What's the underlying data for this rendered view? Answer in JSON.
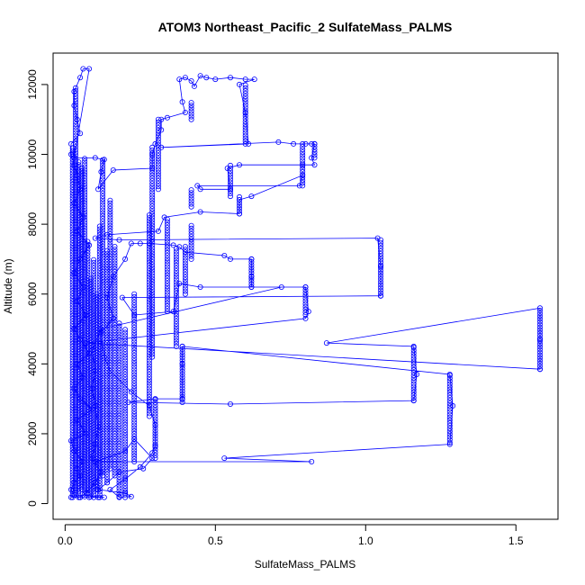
{
  "chart_data": {
    "type": "scatter",
    "title": "ATOM3 Northeast_Pacific_2 SulfateMass_PALMS",
    "xlabel": "SulfateMass_PALMS",
    "ylabel": "Altitude (m)",
    "xlim": [
      -0.04,
      1.64
    ],
    "ylim": [
      -450,
      12900
    ],
    "xticks": [
      0.0,
      0.5,
      1.0,
      1.5
    ],
    "xtick_labels": [
      "0.0",
      "0.5",
      "1.0",
      "1.5"
    ],
    "yticks": [
      0,
      2000,
      4000,
      6000,
      8000,
      10000,
      12000
    ],
    "ytick_labels": [
      "0",
      "2000",
      "4000",
      "6000",
      "8000",
      "10000",
      "12000"
    ],
    "grid": false,
    "marker": "open-circle",
    "color": "#0000ff",
    "line_style": "connected",
    "series": [
      {
        "points": [
          [
            0.02,
            180
          ],
          [
            0.05,
            180
          ],
          [
            0.08,
            180
          ],
          [
            0.11,
            180
          ],
          [
            0.13,
            180
          ],
          [
            0.03,
            250
          ],
          [
            0.02,
            400
          ],
          [
            0.03,
            600
          ],
          [
            0.05,
            800
          ],
          [
            0.04,
            1000
          ],
          [
            0.06,
            1200
          ],
          [
            0.03,
            1500
          ],
          [
            0.02,
            1800
          ],
          [
            0.07,
            2000
          ],
          [
            0.04,
            2400
          ],
          [
            0.09,
            2700
          ],
          [
            0.05,
            3000
          ],
          [
            0.03,
            3300
          ],
          [
            0.06,
            3600
          ],
          [
            0.04,
            4000
          ],
          [
            0.08,
            4300
          ],
          [
            0.05,
            4700
          ],
          [
            0.03,
            5000
          ],
          [
            0.07,
            5400
          ],
          [
            0.04,
            5800
          ],
          [
            0.06,
            6200
          ],
          [
            0.03,
            6600
          ],
          [
            0.05,
            7000
          ],
          [
            0.08,
            7400
          ],
          [
            0.04,
            7800
          ],
          [
            0.06,
            8200
          ],
          [
            0.03,
            8600
          ],
          [
            0.05,
            9000
          ],
          [
            0.04,
            9400
          ],
          [
            0.03,
            9700
          ],
          [
            0.02,
            10000
          ],
          [
            0.02,
            10300
          ],
          [
            0.05,
            10600
          ],
          [
            0.04,
            11000
          ],
          [
            0.03,
            11400
          ],
          [
            0.03,
            11800
          ],
          [
            0.05,
            12200
          ],
          [
            0.06,
            12450
          ],
          [
            0.08,
            12450
          ],
          [
            0.03,
            9900
          ],
          [
            0.1,
            9900
          ],
          [
            0.13,
            9850
          ],
          [
            0.12,
            9500
          ],
          [
            0.11,
            9000
          ],
          [
            0.16,
            9550
          ],
          [
            0.29,
            9600
          ],
          [
            0.29,
            10000
          ],
          [
            0.3,
            10300
          ],
          [
            0.32,
            10700
          ],
          [
            0.32,
            11000
          ],
          [
            0.34,
            11050
          ],
          [
            0.4,
            11200
          ],
          [
            0.39,
            11500
          ],
          [
            0.38,
            12150
          ],
          [
            0.4,
            12200
          ],
          [
            0.42,
            12100
          ],
          [
            0.43,
            11950
          ],
          [
            0.45,
            12250
          ],
          [
            0.47,
            12200
          ],
          [
            0.5,
            12150
          ],
          [
            0.55,
            12200
          ],
          [
            0.6,
            12150
          ],
          [
            0.63,
            12150
          ],
          [
            0.58,
            12000
          ],
          [
            0.6,
            11200
          ],
          [
            0.61,
            10300
          ],
          [
            0.32,
            10200
          ],
          [
            0.71,
            10350
          ],
          [
            0.76,
            10300
          ],
          [
            0.8,
            10300
          ],
          [
            0.82,
            10300
          ],
          [
            0.83,
            10300
          ],
          [
            0.82,
            9900
          ],
          [
            0.83,
            9700
          ],
          [
            0.79,
            9700
          ],
          [
            0.58,
            9700
          ],
          [
            0.54,
            9600
          ],
          [
            0.55,
            9000
          ],
          [
            0.45,
            9000
          ],
          [
            0.44,
            9100
          ],
          [
            0.78,
            9100
          ],
          [
            0.79,
            9400
          ],
          [
            0.62,
            8800
          ],
          [
            0.58,
            8700
          ],
          [
            0.58,
            8300
          ],
          [
            0.45,
            8350
          ],
          [
            0.33,
            8200
          ],
          [
            0.31,
            7800
          ],
          [
            0.14,
            7700
          ],
          [
            0.1,
            7600
          ],
          [
            0.18,
            7550
          ],
          [
            1.04,
            7600
          ],
          [
            1.05,
            6800
          ],
          [
            1.05,
            5950
          ],
          [
            0.19,
            5900
          ],
          [
            0.23,
            5400
          ],
          [
            0.36,
            5500
          ],
          [
            0.38,
            6300
          ],
          [
            0.45,
            6200
          ],
          [
            0.8,
            6200
          ],
          [
            0.81,
            5500
          ],
          [
            0.8,
            5300
          ],
          [
            0.07,
            4600
          ],
          [
            1.58,
            3850
          ],
          [
            1.58,
            4700
          ],
          [
            1.58,
            5600
          ],
          [
            0.87,
            4600
          ],
          [
            1.16,
            4500
          ],
          [
            1.17,
            3700
          ],
          [
            1.16,
            2950
          ],
          [
            0.55,
            2850
          ],
          [
            0.21,
            2900
          ],
          [
            0.3,
            3000
          ],
          [
            0.39,
            3000
          ],
          [
            0.39,
            4000
          ],
          [
            0.39,
            4500
          ],
          [
            1.28,
            3700
          ],
          [
            1.29,
            2800
          ],
          [
            1.28,
            1700
          ],
          [
            0.53,
            1300
          ],
          [
            0.82,
            1200
          ],
          [
            0.1,
            1200
          ],
          [
            0.2,
            1500
          ],
          [
            0.23,
            1850
          ],
          [
            0.29,
            1300
          ],
          [
            0.26,
            1000
          ],
          [
            0.18,
            900
          ],
          [
            0.14,
            600
          ],
          [
            0.11,
            400
          ],
          [
            0.2,
            300
          ],
          [
            0.22,
            200
          ],
          [
            0.18,
            180
          ],
          [
            0.15,
            400
          ],
          [
            0.2,
            700
          ],
          [
            0.25,
            1050
          ],
          [
            0.29,
            1450
          ],
          [
            0.3,
            1650
          ],
          [
            0.3,
            2250
          ],
          [
            0.28,
            2800
          ],
          [
            0.22,
            3200
          ],
          [
            0.15,
            3800
          ],
          [
            0.13,
            4200
          ],
          [
            0.12,
            4900
          ],
          [
            0.16,
            5300
          ],
          [
            0.14,
            5900
          ],
          [
            0.16,
            6500
          ],
          [
            0.2,
            7000
          ],
          [
            0.22,
            7450
          ],
          [
            0.25,
            7450
          ],
          [
            0.28,
            7450
          ],
          [
            0.36,
            7400
          ],
          [
            0.38,
            7350
          ],
          [
            0.4,
            7200
          ],
          [
            0.53,
            7100
          ],
          [
            0.55,
            7000
          ],
          [
            0.62,
            7000
          ],
          [
            0.62,
            6500
          ],
          [
            0.62,
            6200
          ],
          [
            0.72,
            6200
          ],
          [
            0.12,
            5000
          ],
          [
            0.09,
            4400
          ],
          [
            0.1,
            3800
          ],
          [
            0.09,
            3300
          ],
          [
            0.1,
            2800
          ],
          [
            0.11,
            2200
          ],
          [
            0.1,
            1700
          ],
          [
            0.09,
            1300
          ],
          [
            0.12,
            900
          ],
          [
            0.1,
            600
          ],
          [
            0.07,
            300
          ],
          [
            0.05,
            180
          ]
        ]
      }
    ],
    "columns": [
      {
        "x": 0.025,
        "y0": 180,
        "y1": 10200
      },
      {
        "x": 0.035,
        "y0": 300,
        "y1": 11900
      },
      {
        "x": 0.045,
        "y0": 180,
        "y1": 9800
      },
      {
        "x": 0.055,
        "y0": 400,
        "y1": 9600
      },
      {
        "x": 0.065,
        "y0": 200,
        "y1": 9900
      },
      {
        "x": 0.075,
        "y0": 300,
        "y1": 7500
      },
      {
        "x": 0.085,
        "y0": 200,
        "y1": 6500
      },
      {
        "x": 0.095,
        "y0": 180,
        "y1": 7000
      },
      {
        "x": 0.105,
        "y0": 400,
        "y1": 6000
      },
      {
        "x": 0.115,
        "y0": 180,
        "y1": 8000
      },
      {
        "x": 0.125,
        "y0": 800,
        "y1": 9900
      },
      {
        "x": 0.14,
        "y0": 600,
        "y1": 7300
      },
      {
        "x": 0.15,
        "y0": 1000,
        "y1": 8700
      },
      {
        "x": 0.165,
        "y0": 800,
        "y1": 7400
      },
      {
        "x": 0.18,
        "y0": 200,
        "y1": 5200
      },
      {
        "x": 0.2,
        "y0": 180,
        "y1": 5000
      },
      {
        "x": 0.23,
        "y0": 1200,
        "y1": 6000
      },
      {
        "x": 0.28,
        "y0": 2500,
        "y1": 8300
      },
      {
        "x": 0.29,
        "y0": 4200,
        "y1": 10200
      },
      {
        "x": 0.3,
        "y0": 1300,
        "y1": 3000
      },
      {
        "x": 0.31,
        "y0": 9000,
        "y1": 11000
      },
      {
        "x": 0.34,
        "y0": 5500,
        "y1": 8200
      },
      {
        "x": 0.37,
        "y0": 4500,
        "y1": 7300
      },
      {
        "x": 0.39,
        "y0": 2900,
        "y1": 4500
      },
      {
        "x": 0.4,
        "y0": 6000,
        "y1": 7400
      },
      {
        "x": 0.42,
        "y0": 7000,
        "y1": 8000
      },
      {
        "x": 0.42,
        "y0": 11000,
        "y1": 11500
      },
      {
        "x": 0.42,
        "y0": 8500,
        "y1": 9000
      },
      {
        "x": 0.55,
        "y0": 8800,
        "y1": 9700
      },
      {
        "x": 0.58,
        "y0": 8300,
        "y1": 8800
      },
      {
        "x": 0.6,
        "y0": 10300,
        "y1": 12000
      },
      {
        "x": 0.62,
        "y0": 6200,
        "y1": 7000
      },
      {
        "x": 0.79,
        "y0": 9100,
        "y1": 10300
      },
      {
        "x": 0.8,
        "y0": 5400,
        "y1": 6200
      },
      {
        "x": 0.83,
        "y0": 9900,
        "y1": 10300
      },
      {
        "x": 1.05,
        "y0": 5950,
        "y1": 7600
      },
      {
        "x": 1.16,
        "y0": 2950,
        "y1": 4500
      },
      {
        "x": 1.28,
        "y0": 1750,
        "y1": 3700
      },
      {
        "x": 1.58,
        "y0": 3850,
        "y1": 5600
      }
    ]
  }
}
